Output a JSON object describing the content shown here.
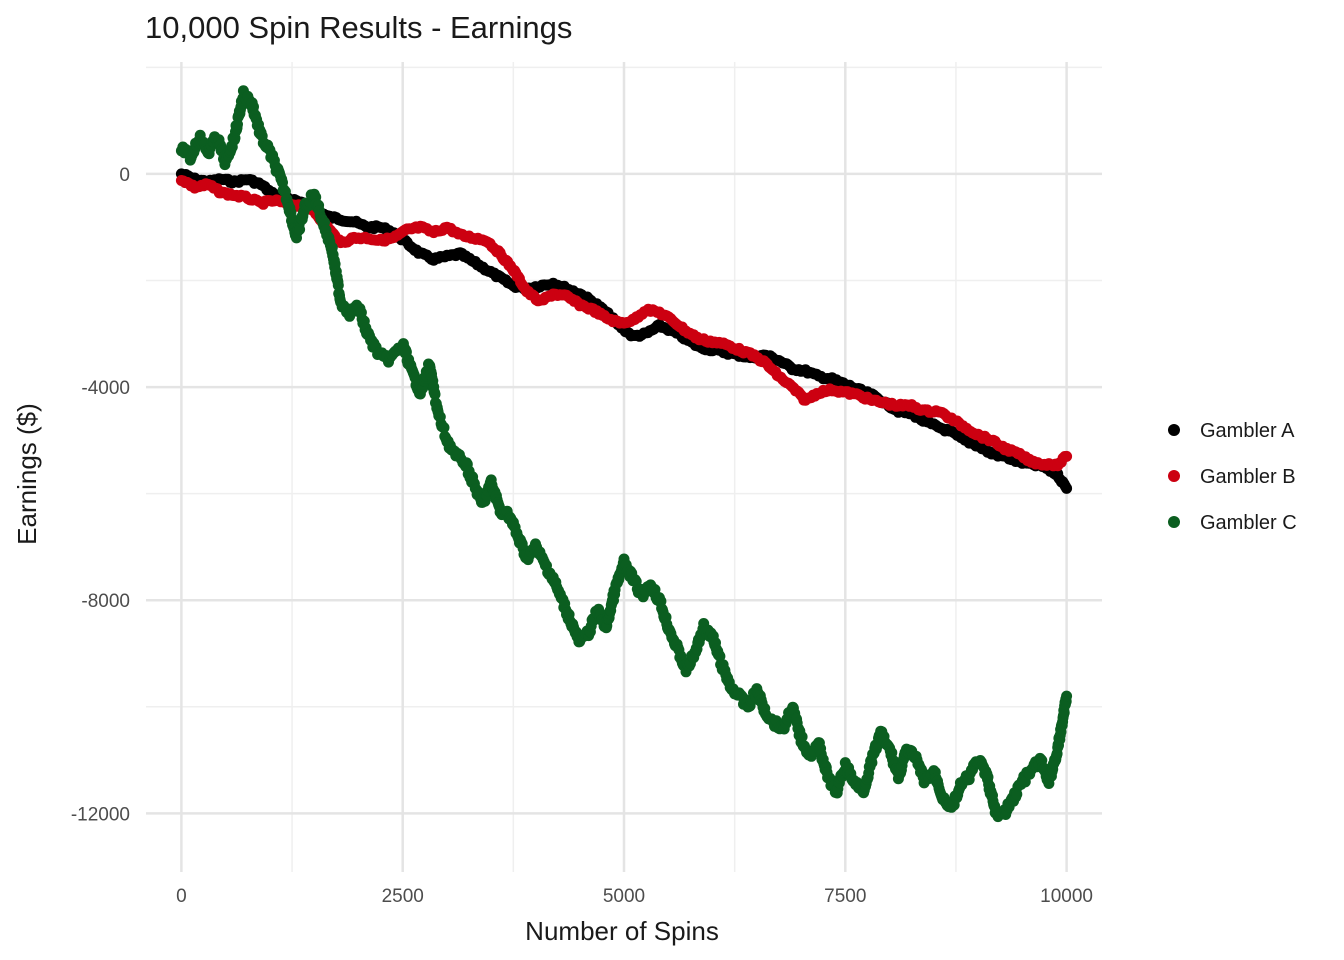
{
  "chart_data": {
    "type": "line",
    "title": "10,000 Spin Results - Earnings",
    "xlabel": "Number of Spins",
    "ylabel": "Earnings ($)",
    "xlim": [
      -400,
      10400
    ],
    "ylim": [
      -13100,
      2100
    ],
    "x_ticks": [
      0,
      2500,
      5000,
      7500,
      10000
    ],
    "x_tick_labels": [
      "0",
      "2500",
      "5000",
      "7500",
      "10000"
    ],
    "y_ticks": [
      0,
      -4000,
      -8000,
      -12000
    ],
    "y_tick_labels": [
      "0",
      "-4000",
      "-8000",
      "-12000"
    ],
    "grid": true,
    "legend_position": "right",
    "series": [
      {
        "name": "Gambler A",
        "color": "#000000",
        "points": [
          [
            0,
            0
          ],
          [
            150,
            -100
          ],
          [
            300,
            -150
          ],
          [
            450,
            -100
          ],
          [
            600,
            -150
          ],
          [
            750,
            -100
          ],
          [
            900,
            -200
          ],
          [
            1050,
            -400
          ],
          [
            1200,
            -450
          ],
          [
            1350,
            -550
          ],
          [
            1500,
            -650
          ],
          [
            1650,
            -800
          ],
          [
            1800,
            -850
          ],
          [
            1950,
            -900
          ],
          [
            2100,
            -1000
          ],
          [
            2250,
            -1000
          ],
          [
            2400,
            -1100
          ],
          [
            2550,
            -1300
          ],
          [
            2700,
            -1500
          ],
          [
            2850,
            -1600
          ],
          [
            3000,
            -1550
          ],
          [
            3150,
            -1500
          ],
          [
            3300,
            -1650
          ],
          [
            3450,
            -1800
          ],
          [
            3600,
            -1950
          ],
          [
            3750,
            -2100
          ],
          [
            3900,
            -2150
          ],
          [
            4050,
            -2100
          ],
          [
            4200,
            -2050
          ],
          [
            4350,
            -2150
          ],
          [
            4500,
            -2250
          ],
          [
            4650,
            -2400
          ],
          [
            4800,
            -2600
          ],
          [
            4950,
            -2850
          ],
          [
            5100,
            -3050
          ],
          [
            5250,
            -3000
          ],
          [
            5400,
            -2850
          ],
          [
            5550,
            -2950
          ],
          [
            5700,
            -3100
          ],
          [
            5850,
            -3250
          ],
          [
            6000,
            -3300
          ],
          [
            6150,
            -3350
          ],
          [
            6300,
            -3400
          ],
          [
            6450,
            -3450
          ],
          [
            6600,
            -3400
          ],
          [
            6750,
            -3500
          ],
          [
            6900,
            -3650
          ],
          [
            7050,
            -3700
          ],
          [
            7200,
            -3800
          ],
          [
            7350,
            -3850
          ],
          [
            7500,
            -3950
          ],
          [
            7650,
            -4050
          ],
          [
            7800,
            -4150
          ],
          [
            7950,
            -4300
          ],
          [
            8100,
            -4450
          ],
          [
            8250,
            -4500
          ],
          [
            8400,
            -4650
          ],
          [
            8550,
            -4750
          ],
          [
            8700,
            -4850
          ],
          [
            8850,
            -5000
          ],
          [
            9000,
            -5100
          ],
          [
            9150,
            -5250
          ],
          [
            9300,
            -5300
          ],
          [
            9450,
            -5400
          ],
          [
            9600,
            -5450
          ],
          [
            9750,
            -5500
          ],
          [
            9900,
            -5650
          ],
          [
            10000,
            -5900
          ]
        ]
      },
      {
        "name": "Gambler B",
        "color": "#cc0011",
        "points": [
          [
            0,
            -100
          ],
          [
            150,
            -250
          ],
          [
            300,
            -200
          ],
          [
            450,
            -350
          ],
          [
            600,
            -400
          ],
          [
            750,
            -450
          ],
          [
            900,
            -550
          ],
          [
            1050,
            -500
          ],
          [
            1200,
            -550
          ],
          [
            1350,
            -600
          ],
          [
            1500,
            -700
          ],
          [
            1650,
            -1000
          ],
          [
            1800,
            -1300
          ],
          [
            1950,
            -1200
          ],
          [
            2100,
            -1200
          ],
          [
            2250,
            -1250
          ],
          [
            2400,
            -1200
          ],
          [
            2550,
            -1050
          ],
          [
            2700,
            -1000
          ],
          [
            2850,
            -1100
          ],
          [
            3000,
            -1000
          ],
          [
            3150,
            -1150
          ],
          [
            3300,
            -1200
          ],
          [
            3450,
            -1250
          ],
          [
            3600,
            -1500
          ],
          [
            3750,
            -1800
          ],
          [
            3900,
            -2200
          ],
          [
            4050,
            -2400
          ],
          [
            4200,
            -2250
          ],
          [
            4350,
            -2300
          ],
          [
            4500,
            -2450
          ],
          [
            4650,
            -2550
          ],
          [
            4800,
            -2700
          ],
          [
            4950,
            -2800
          ],
          [
            5100,
            -2750
          ],
          [
            5250,
            -2550
          ],
          [
            5400,
            -2600
          ],
          [
            5550,
            -2750
          ],
          [
            5700,
            -2950
          ],
          [
            5850,
            -3100
          ],
          [
            6000,
            -3150
          ],
          [
            6150,
            -3200
          ],
          [
            6300,
            -3300
          ],
          [
            6450,
            -3400
          ],
          [
            6600,
            -3550
          ],
          [
            6750,
            -3800
          ],
          [
            6900,
            -4000
          ],
          [
            7050,
            -4250
          ],
          [
            7200,
            -4100
          ],
          [
            7350,
            -4050
          ],
          [
            7500,
            -4100
          ],
          [
            7650,
            -4150
          ],
          [
            7800,
            -4250
          ],
          [
            7950,
            -4300
          ],
          [
            8100,
            -4350
          ],
          [
            8250,
            -4350
          ],
          [
            8400,
            -4450
          ],
          [
            8550,
            -4450
          ],
          [
            8700,
            -4600
          ],
          [
            8850,
            -4750
          ],
          [
            9000,
            -4900
          ],
          [
            9150,
            -5000
          ],
          [
            9300,
            -5150
          ],
          [
            9450,
            -5250
          ],
          [
            9600,
            -5400
          ],
          [
            9750,
            -5450
          ],
          [
            9900,
            -5450
          ],
          [
            10000,
            -5300
          ]
        ]
      },
      {
        "name": "Gambler C",
        "color": "#0b5e20",
        "points": [
          [
            0,
            500
          ],
          [
            100,
            300
          ],
          [
            200,
            700
          ],
          [
            300,
            400
          ],
          [
            400,
            700
          ],
          [
            500,
            200
          ],
          [
            600,
            700
          ],
          [
            700,
            1500
          ],
          [
            800,
            1300
          ],
          [
            900,
            700
          ],
          [
            1000,
            400
          ],
          [
            1100,
            0
          ],
          [
            1200,
            -500
          ],
          [
            1300,
            -1200
          ],
          [
            1400,
            -600
          ],
          [
            1500,
            -400
          ],
          [
            1600,
            -900
          ],
          [
            1700,
            -1400
          ],
          [
            1800,
            -2400
          ],
          [
            1900,
            -2600
          ],
          [
            2000,
            -2500
          ],
          [
            2100,
            -3000
          ],
          [
            2200,
            -3300
          ],
          [
            2300,
            -3500
          ],
          [
            2400,
            -3400
          ],
          [
            2500,
            -3200
          ],
          [
            2600,
            -3700
          ],
          [
            2700,
            -4100
          ],
          [
            2800,
            -3600
          ],
          [
            2900,
            -4500
          ],
          [
            3000,
            -5000
          ],
          [
            3100,
            -5300
          ],
          [
            3200,
            -5400
          ],
          [
            3300,
            -5800
          ],
          [
            3400,
            -6200
          ],
          [
            3500,
            -5800
          ],
          [
            3600,
            -6300
          ],
          [
            3700,
            -6400
          ],
          [
            3800,
            -6800
          ],
          [
            3900,
            -7200
          ],
          [
            4000,
            -7000
          ],
          [
            4100,
            -7300
          ],
          [
            4200,
            -7600
          ],
          [
            4300,
            -8000
          ],
          [
            4400,
            -8400
          ],
          [
            4500,
            -8800
          ],
          [
            4600,
            -8600
          ],
          [
            4700,
            -8200
          ],
          [
            4800,
            -8500
          ],
          [
            4900,
            -7800
          ],
          [
            5000,
            -7300
          ],
          [
            5100,
            -7600
          ],
          [
            5200,
            -7900
          ],
          [
            5300,
            -7700
          ],
          [
            5400,
            -8000
          ],
          [
            5500,
            -8500
          ],
          [
            5600,
            -8900
          ],
          [
            5700,
            -9300
          ],
          [
            5800,
            -9000
          ],
          [
            5900,
            -8500
          ],
          [
            6000,
            -8700
          ],
          [
            6100,
            -9200
          ],
          [
            6200,
            -9600
          ],
          [
            6300,
            -9800
          ],
          [
            6400,
            -10000
          ],
          [
            6500,
            -9700
          ],
          [
            6600,
            -10100
          ],
          [
            6700,
            -10300
          ],
          [
            6800,
            -10400
          ],
          [
            6900,
            -10000
          ],
          [
            7000,
            -10600
          ],
          [
            7100,
            -10900
          ],
          [
            7200,
            -10700
          ],
          [
            7300,
            -11300
          ],
          [
            7400,
            -11600
          ],
          [
            7500,
            -11100
          ],
          [
            7600,
            -11400
          ],
          [
            7700,
            -11600
          ],
          [
            7800,
            -11000
          ],
          [
            7900,
            -10500
          ],
          [
            8000,
            -10800
          ],
          [
            8100,
            -11300
          ],
          [
            8200,
            -10800
          ],
          [
            8300,
            -11000
          ],
          [
            8400,
            -11400
          ],
          [
            8500,
            -11200
          ],
          [
            8600,
            -11700
          ],
          [
            8700,
            -11900
          ],
          [
            8800,
            -11500
          ],
          [
            8900,
            -11300
          ],
          [
            9000,
            -11000
          ],
          [
            9100,
            -11300
          ],
          [
            9200,
            -12000
          ],
          [
            9300,
            -12000
          ],
          [
            9400,
            -11700
          ],
          [
            9500,
            -11400
          ],
          [
            9600,
            -11200
          ],
          [
            9700,
            -11000
          ],
          [
            9800,
            -11400
          ],
          [
            9900,
            -10800
          ],
          [
            10000,
            -9800
          ]
        ]
      }
    ]
  }
}
